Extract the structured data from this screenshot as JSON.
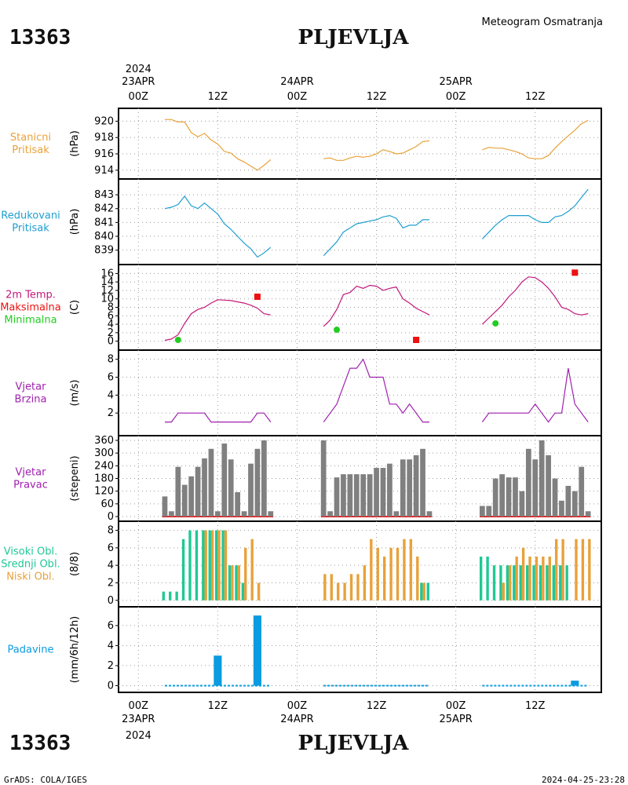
{
  "header": {
    "station_id": "13363",
    "station_name": "PLJEVLJA",
    "product": "Meteogram Osmatranja",
    "footer_left": "GrADS: COLA/IGES",
    "footer_right": "2024-04-25-23:28"
  },
  "time_axis": {
    "year": "2024",
    "date_labels": [
      "23APR",
      "24APR",
      "25APR"
    ],
    "tick_labels": [
      "00Z",
      "12Z",
      "00Z",
      "12Z",
      "00Z",
      "12Z"
    ],
    "tick_hours": [
      0,
      12,
      24,
      36,
      48,
      60
    ],
    "range_hours": [
      -3,
      70
    ]
  },
  "colors": {
    "orange": "#e8a13a",
    "cyan": "#1e9fd0",
    "magenta": "#c2187a",
    "red": "#ee1111",
    "green": "#22cc22",
    "purple": "#a020b0",
    "gray": "#808080",
    "teal": "#1fc895",
    "blue": "#0a9be0"
  },
  "chart_data": [
    {
      "type": "line",
      "id": "stanicni",
      "label_lines": [
        "Stanicni",
        "Pritisak"
      ],
      "label_color": "#e8a13a",
      "unit": "(hPa)",
      "ylim": [
        913.5,
        921
      ],
      "yticks": [
        914,
        916,
        918,
        920
      ],
      "series": [
        {
          "color": "#e8a13a",
          "x": [
            4,
            5,
            6,
            7,
            8,
            9,
            10,
            11,
            12,
            13,
            14,
            15,
            16,
            17,
            18,
            19,
            20
          ],
          "y": [
            920.2,
            920.2,
            919.9,
            919.9,
            918.6,
            918.1,
            918.5,
            917.7,
            917.2,
            916.3,
            916.1,
            915.4,
            915.0,
            914.5,
            914.0,
            914.6,
            915.3
          ]
        },
        {
          "color": "#e8a13a",
          "x": [
            28,
            29,
            30,
            31,
            32,
            33,
            34,
            35,
            36,
            37,
            38,
            39,
            40,
            41,
            42,
            43,
            44
          ],
          "y": [
            915.4,
            915.5,
            915.2,
            915.2,
            915.5,
            915.7,
            915.6,
            915.7,
            916.0,
            916.5,
            916.3,
            916.0,
            916.1,
            916.5,
            916.9,
            917.5,
            917.6
          ]
        },
        {
          "color": "#e8a13a",
          "x": [
            52,
            53,
            54,
            55,
            56,
            57,
            58,
            59,
            60,
            61,
            62,
            63,
            64,
            65,
            66,
            67,
            68
          ],
          "y": [
            916.5,
            916.8,
            916.7,
            916.7,
            916.5,
            916.3,
            916.0,
            915.5,
            915.4,
            915.4,
            915.8,
            916.7,
            917.5,
            918.2,
            918.9,
            919.7,
            920.1
          ]
        }
      ]
    },
    {
      "type": "line",
      "id": "redukovani",
      "label_lines": [
        "Redukovani",
        "Pritisak"
      ],
      "label_color": "#1e9fd0",
      "unit": "(hPa)",
      "ylim": [
        838.3,
        843.8
      ],
      "yticks": [
        839,
        840,
        841,
        842,
        843
      ],
      "series": [
        {
          "color": "#1e9fd0",
          "x": [
            4,
            5,
            6,
            7,
            8,
            9,
            10,
            11,
            12,
            13,
            14,
            15,
            16,
            17,
            18,
            19,
            20
          ],
          "y": [
            842.0,
            842.1,
            842.3,
            842.9,
            842.2,
            842.0,
            842.4,
            842.0,
            841.6,
            840.9,
            840.5,
            840.0,
            839.5,
            839.1,
            838.5,
            838.8,
            839.2
          ]
        },
        {
          "color": "#1e9fd0",
          "x": [
            28,
            29,
            30,
            31,
            32,
            33,
            34,
            35,
            36,
            37,
            38,
            39,
            40,
            41,
            42,
            43,
            44
          ],
          "y": [
            838.6,
            839.1,
            839.6,
            840.3,
            840.6,
            840.9,
            841.0,
            841.1,
            841.2,
            841.4,
            841.5,
            841.3,
            840.6,
            840.8,
            840.8,
            841.2,
            841.2
          ]
        },
        {
          "color": "#1e9fd0",
          "x": [
            52,
            53,
            54,
            55,
            56,
            57,
            58,
            59,
            60,
            61,
            62,
            63,
            64,
            65,
            66,
            67,
            68
          ],
          "y": [
            839.8,
            840.3,
            840.8,
            841.2,
            841.5,
            841.5,
            841.5,
            841.5,
            841.2,
            841.0,
            841.0,
            841.4,
            841.5,
            841.8,
            842.2,
            842.8,
            843.4
          ]
        }
      ]
    },
    {
      "type": "line",
      "id": "temperatura",
      "label_lines": [
        "2m Temp.",
        "Maksimalna",
        "Minimalna"
      ],
      "label_colors": [
        "#c2187a",
        "#ee1111",
        "#22cc22"
      ],
      "unit": "(C)",
      "ylim": [
        -1,
        17
      ],
      "yticks": [
        0,
        2,
        4,
        6,
        8,
        10,
        12,
        14,
        16
      ],
      "series": [
        {
          "color": "#c2187a",
          "x": [
            4,
            5,
            6,
            7,
            8,
            9,
            10,
            11,
            12,
            13,
            14,
            15,
            16,
            17,
            18,
            19,
            20
          ],
          "y": [
            0.2,
            0.5,
            1.5,
            4.2,
            6.5,
            7.5,
            8.0,
            9.0,
            9.8,
            9.7,
            9.6,
            9.3,
            9.0,
            8.5,
            7.8,
            6.5,
            6.2
          ]
        },
        {
          "color": "#c2187a",
          "x": [
            28,
            29,
            30,
            31,
            32,
            33,
            34,
            35,
            36,
            37,
            38,
            39,
            40,
            41,
            42,
            43,
            44
          ],
          "y": [
            3.5,
            5.0,
            7.5,
            11.0,
            11.5,
            13.0,
            12.5,
            13.2,
            13.0,
            12.0,
            12.5,
            12.8,
            10.0,
            9.0,
            7.8,
            7.0,
            6.2
          ]
        },
        {
          "color": "#c2187a",
          "x": [
            52,
            53,
            54,
            55,
            56,
            57,
            58,
            59,
            60,
            61,
            62,
            63,
            64,
            65,
            66,
            67,
            68
          ],
          "y": [
            4.0,
            5.5,
            7.0,
            8.5,
            10.5,
            12.0,
            14.0,
            15.2,
            15.0,
            14.0,
            12.5,
            10.5,
            8.0,
            7.5,
            6.5,
            6.2,
            6.5
          ]
        }
      ],
      "max_points": {
        "color": "#ee1111",
        "x": [
          18,
          42,
          66
        ],
        "y": [
          10.5,
          0.3,
          16.2
        ]
      },
      "min_points": {
        "color": "#22cc22",
        "x": [
          6,
          30,
          54
        ],
        "y": [
          0.3,
          2.7,
          4.2
        ]
      }
    },
    {
      "type": "line",
      "id": "vjetar_brzina",
      "label_lines": [
        "Vjetar",
        "Brzina"
      ],
      "label_color": "#a020b0",
      "unit": "(m/s)",
      "ylim": [
        0,
        8.5
      ],
      "yticks": [
        2,
        4,
        6,
        8
      ],
      "series": [
        {
          "color": "#a020b0",
          "x": [
            4,
            5,
            6,
            7,
            8,
            9,
            10,
            11,
            12,
            13,
            14,
            15,
            16,
            17,
            18,
            19,
            20
          ],
          "y": [
            1,
            1,
            2,
            2,
            2,
            2,
            2,
            1,
            1,
            1,
            1,
            1,
            1,
            1,
            2,
            2,
            1
          ]
        },
        {
          "color": "#a020b0",
          "x": [
            28,
            29,
            30,
            31,
            32,
            33,
            34,
            35,
            36,
            37,
            38,
            39,
            40,
            41,
            42,
            43,
            44
          ],
          "y": [
            1,
            2,
            3,
            5,
            7,
            7,
            8,
            6,
            6,
            6,
            3,
            3,
            2,
            3,
            2,
            1,
            1
          ]
        },
        {
          "color": "#a020b0",
          "x": [
            52,
            53,
            54,
            55,
            56,
            57,
            58,
            59,
            60,
            61,
            62,
            63,
            64,
            65,
            66,
            67,
            68
          ],
          "y": [
            1,
            2,
            2,
            2,
            2,
            2,
            2,
            2,
            3,
            2,
            1,
            2,
            2,
            7,
            3,
            2,
            1
          ]
        }
      ]
    },
    {
      "type": "bar",
      "id": "vjetar_pravac",
      "label_lines": [
        "Vjetar",
        "Pravac"
      ],
      "label_color": "#a020b0",
      "unit": "(stepeni)",
      "ylim": [
        0,
        360
      ],
      "yticks": [
        0,
        60,
        120,
        180,
        240,
        300,
        360
      ],
      "bar_width_hours": 0.8,
      "baseline_color": "#ee1111",
      "series": [
        {
          "color": "#808080",
          "x": [
            4,
            5,
            6,
            7,
            8,
            9,
            10,
            11,
            12,
            13,
            14,
            15,
            16,
            17,
            18,
            19,
            20,
            28,
            29,
            30,
            31,
            32,
            33,
            34,
            35,
            36,
            37,
            38,
            39,
            40,
            41,
            42,
            43,
            44,
            52,
            53,
            54,
            55,
            56,
            57,
            58,
            59,
            60,
            61,
            62,
            63,
            64,
            65,
            66,
            67,
            68
          ],
          "values": [
            95,
            25,
            235,
            150,
            190,
            235,
            275,
            320,
            25,
            345,
            270,
            115,
            25,
            250,
            320,
            360,
            25,
            360,
            25,
            185,
            200,
            200,
            200,
            200,
            200,
            230,
            230,
            250,
            25,
            270,
            270,
            290,
            320,
            25,
            50,
            50,
            180,
            200,
            185,
            185,
            120,
            320,
            270,
            360,
            290,
            180,
            75,
            145,
            120,
            235,
            25
          ]
        }
      ]
    },
    {
      "type": "bar",
      "id": "oblacnost",
      "label_lines": [
        "Visoki Obl.",
        "Srednji Obl.",
        "Niski Obl."
      ],
      "label_colors": [
        "#1fc895",
        "#1fc895",
        "#e8a13a"
      ],
      "unit": "(8/8)",
      "ylim": [
        -0.2,
        8.5
      ],
      "yticks": [
        0,
        2,
        4,
        6,
        8
      ],
      "series": [
        {
          "name": "Visoki Obl.",
          "color": "#1fc895",
          "x": [
            4,
            5,
            6,
            7,
            8,
            9,
            10,
            11,
            12,
            13,
            14,
            15,
            16,
            17,
            18,
            19,
            20,
            28,
            29,
            30,
            31,
            32,
            33,
            34,
            35,
            36,
            37,
            38,
            39,
            40,
            41,
            42,
            43,
            44,
            52,
            53,
            54,
            55,
            56,
            57,
            58,
            59,
            60,
            61,
            62,
            63,
            64,
            65,
            66,
            67,
            68
          ],
          "values": [
            1,
            1,
            1,
            7,
            8,
            8,
            8,
            8,
            8,
            8,
            4,
            4,
            2,
            0,
            0,
            0,
            0,
            0,
            0,
            0,
            0,
            0,
            0,
            0,
            0,
            0,
            0,
            0,
            0,
            0,
            0,
            0,
            2,
            2,
            5,
            5,
            4,
            4,
            4,
            4,
            4,
            4,
            4,
            4,
            4,
            4,
            4,
            4,
            0,
            0,
            0
          ]
        },
        {
          "name": "Niski Obl.",
          "color": "#e8a13a",
          "x": [
            4,
            5,
            6,
            7,
            8,
            9,
            10,
            11,
            12,
            13,
            14,
            15,
            16,
            17,
            18,
            19,
            20,
            28,
            29,
            30,
            31,
            32,
            33,
            34,
            35,
            36,
            37,
            38,
            39,
            40,
            41,
            42,
            43,
            44,
            52,
            53,
            54,
            55,
            56,
            57,
            58,
            59,
            60,
            61,
            62,
            63,
            64,
            65,
            66,
            67,
            68
          ],
          "values": [
            0,
            0,
            0,
            0,
            0,
            0,
            8,
            8,
            8,
            8,
            4,
            4,
            6,
            7,
            2,
            0,
            0,
            3,
            3,
            2,
            2,
            3,
            3,
            4,
            7,
            6,
            5,
            6,
            6,
            7,
            7,
            5,
            2,
            0,
            0,
            0,
            0,
            2,
            4,
            5,
            6,
            5,
            5,
            5,
            5,
            7,
            7,
            0,
            7,
            7,
            7
          ]
        }
      ]
    },
    {
      "type": "bar",
      "id": "padavine",
      "label_lines": [
        "Padavine"
      ],
      "label_color": "#0a9be0",
      "unit": "(mm/6h/12h)",
      "ylim": [
        -0.2,
        7.4
      ],
      "yticks": [
        0,
        2,
        4,
        6
      ],
      "bar_width_hours": 1.2,
      "trace": {
        "color": "#0a9be0",
        "x1": 4,
        "x2": 20,
        "x3": 28,
        "x4": 44,
        "x5": 52,
        "x6": 68
      },
      "series": [
        {
          "color": "#0a9be0",
          "x": [
            12,
            18,
            66
          ],
          "values": [
            3.0,
            7.0,
            0.5
          ]
        }
      ]
    }
  ]
}
